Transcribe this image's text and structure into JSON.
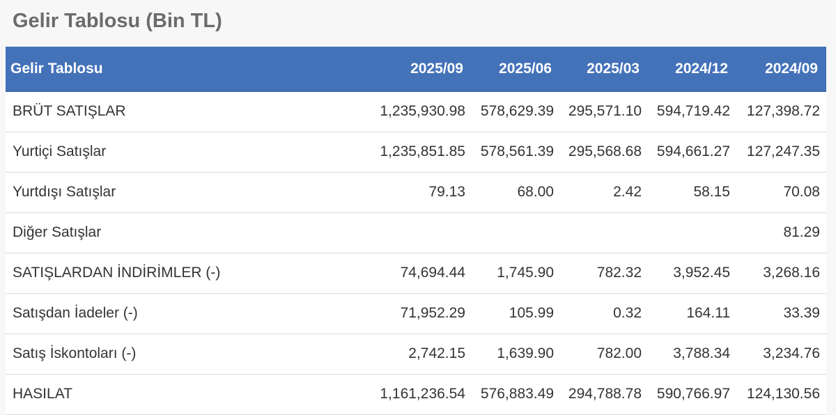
{
  "page": {
    "title": "Gelir Tablosu (Bin TL)"
  },
  "table": {
    "columns": [
      "Gelir Tablosu",
      "2025/09",
      "2025/06",
      "2025/03",
      "2024/12",
      "2024/09"
    ],
    "rows": [
      {
        "label": "BRÜT SATIŞLAR",
        "values": [
          "1,235,930.98",
          "578,629.39",
          "295,571.10",
          "594,719.42",
          "127,398.72"
        ]
      },
      {
        "label": "Yurtiçi Satışlar",
        "values": [
          "1,235,851.85",
          "578,561.39",
          "295,568.68",
          "594,661.27",
          "127,247.35"
        ]
      },
      {
        "label": "Yurtdışı Satışlar",
        "values": [
          "79.13",
          "68.00",
          "2.42",
          "58.15",
          "70.08"
        ]
      },
      {
        "label": "Diğer Satışlar",
        "values": [
          "",
          "",
          "",
          "",
          "81.29"
        ]
      },
      {
        "label": "SATIŞLARDAN İNDİRİMLER (-)",
        "values": [
          "74,694.44",
          "1,745.90",
          "782.32",
          "3,952.45",
          "3,268.16"
        ]
      },
      {
        "label": "Satışdan İadeler (-)",
        "values": [
          "71,952.29",
          "105.99",
          "0.32",
          "164.11",
          "33.39"
        ]
      },
      {
        "label": "Satış İskontoları (-)",
        "values": [
          "2,742.15",
          "1,639.90",
          "782.00",
          "3,788.34",
          "3,234.76"
        ]
      },
      {
        "label": "HASILAT",
        "values": [
          "1,161,236.54",
          "576,883.49",
          "294,788.78",
          "590,766.97",
          "124,130.56"
        ]
      }
    ]
  },
  "colors": {
    "header_bg": "#4472b9",
    "header_text": "#ffffff",
    "title_text": "#6b6b6b",
    "row_border": "#dcdcdc"
  }
}
